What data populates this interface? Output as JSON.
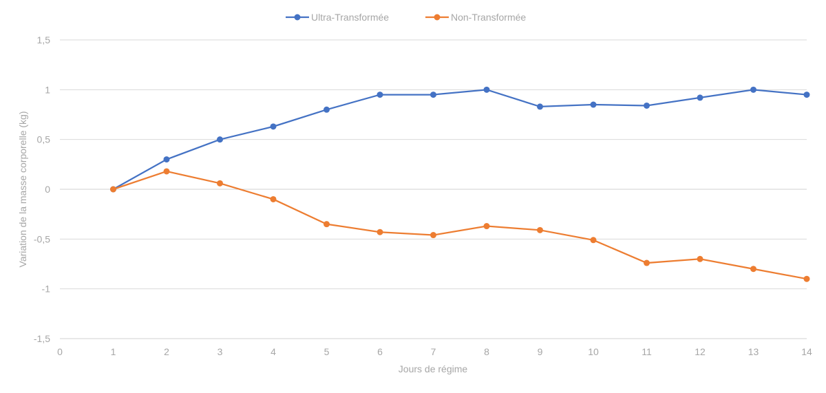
{
  "chart_data": {
    "type": "line",
    "title": "",
    "xlabel": "Jours de régime",
    "ylabel": "Variation de la masse corporelle (kg)",
    "xlim": [
      0,
      14
    ],
    "ylim": [
      -1.5,
      1.5
    ],
    "x_ticks": [
      "0",
      "1",
      "2",
      "3",
      "4",
      "5",
      "6",
      "7",
      "8",
      "9",
      "10",
      "11",
      "12",
      "13",
      "14"
    ],
    "y_ticks": [
      "1,5",
      "1",
      "0,5",
      "0",
      "-0,5",
      "-1",
      "-1,5"
    ],
    "y_tick_values": [
      1.5,
      1,
      0.5,
      0,
      -0.5,
      -1,
      -1.5
    ],
    "grid": true,
    "legend_position": "top-center",
    "x": [
      1,
      2,
      3,
      4,
      5,
      6,
      7,
      8,
      9,
      10,
      11,
      12,
      13,
      14
    ],
    "series": [
      {
        "name": "Ultra-Transformée",
        "color": "#4472c4",
        "values": [
          0,
          0.3,
          0.5,
          0.63,
          0.8,
          0.95,
          0.95,
          1.0,
          0.83,
          0.85,
          0.84,
          0.92,
          1.0,
          0.95
        ]
      },
      {
        "name": "Non-Transformée",
        "color": "#ed7d31",
        "values": [
          0,
          0.18,
          0.06,
          -0.1,
          -0.35,
          -0.43,
          -0.46,
          -0.37,
          -0.41,
          -0.51,
          -0.74,
          -0.7,
          -0.8,
          -0.9
        ]
      }
    ]
  }
}
